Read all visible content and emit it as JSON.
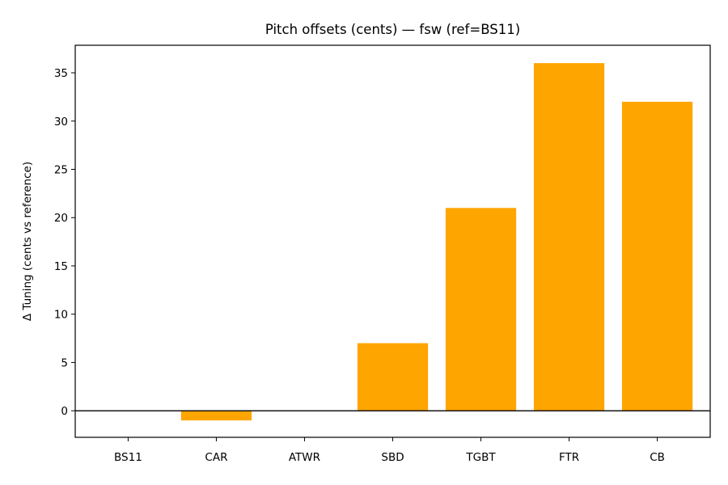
{
  "chart_data": {
    "type": "bar",
    "title": "Pitch offsets (cents) — fsw (ref=BS11)",
    "xlabel": "",
    "ylabel": "Δ Tuning (cents vs reference)",
    "categories": [
      "BS11",
      "CAR",
      "ATWR",
      "SBD",
      "TGBT",
      "FTR",
      "CB"
    ],
    "values": [
      0,
      -1,
      0,
      7,
      21,
      36,
      32
    ],
    "ylim": [
      -2.75,
      37.85
    ],
    "yticks": [
      0,
      5,
      10,
      15,
      20,
      25,
      30,
      35
    ],
    "bar_color": "#FFA500",
    "zero_line": true,
    "grid": false,
    "legend": null
  }
}
